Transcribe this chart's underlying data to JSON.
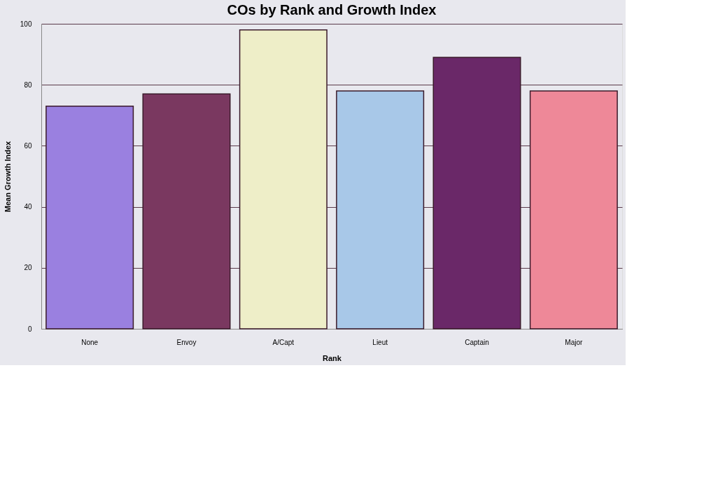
{
  "chart_data": {
    "type": "bar",
    "title": "COs by Rank and Growth Index",
    "xlabel": "Rank",
    "ylabel": "Mean Growth Index",
    "categories": [
      "None",
      "Envoy",
      "A/Capt",
      "Lieut",
      "Captain",
      "Major"
    ],
    "values": [
      73,
      77,
      98,
      78,
      89,
      78
    ],
    "colors": [
      "#9a80e0",
      "#7a3860",
      "#eeeec8",
      "#a8c8e8",
      "#6a2868",
      "#ee8898"
    ],
    "ylim": [
      0,
      100
    ],
    "yticks": [
      0,
      20,
      40,
      60,
      80,
      100
    ],
    "grid": "y",
    "legend": false
  }
}
